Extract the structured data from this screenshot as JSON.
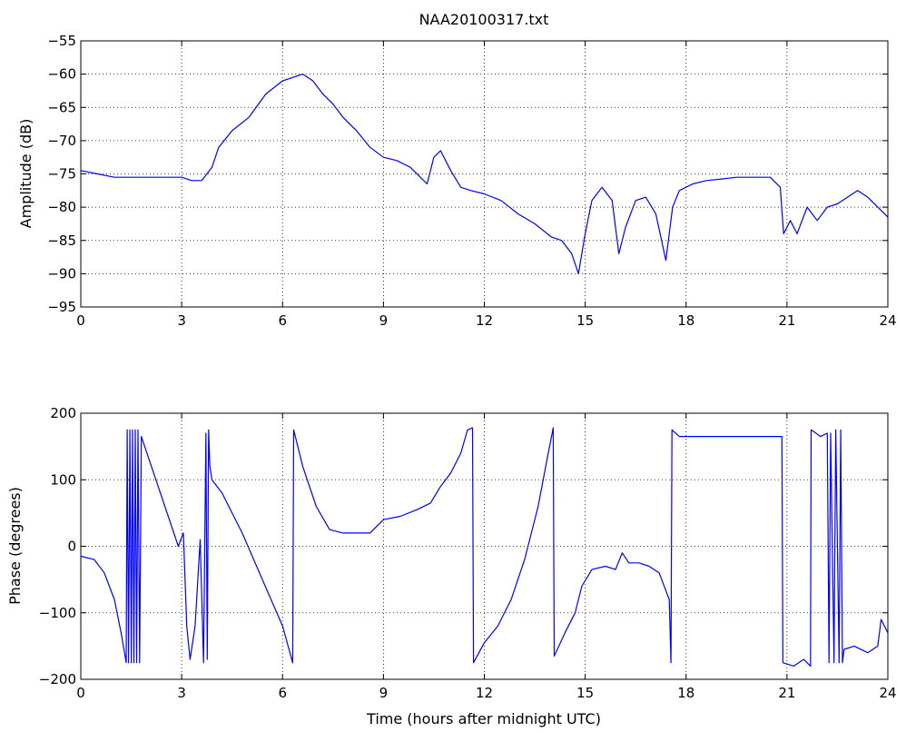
{
  "chart_data": [
    {
      "type": "line",
      "title": "NAA20100317.txt",
      "xlabel": "",
      "ylabel": "Amplitude (dB)",
      "xlim": [
        0,
        24
      ],
      "ylim": [
        -95,
        -55
      ],
      "xticks": [
        0,
        3,
        6,
        9,
        12,
        15,
        18,
        21,
        24
      ],
      "yticks": [
        -95,
        -90,
        -85,
        -80,
        -75,
        -70,
        -65,
        -60,
        -55
      ],
      "grid": true,
      "line_color": "#0000ff",
      "series": [
        {
          "x": [
            0,
            0.5,
            1,
            1.5,
            2,
            2.5,
            3,
            3.3,
            3.6,
            3.9,
            4.1,
            4.5,
            5,
            5.5,
            6,
            6.3,
            6.6,
            6.9,
            7.2,
            7.5,
            7.8,
            8.2,
            8.6,
            9,
            9.4,
            9.8,
            10.1,
            10.3,
            10.5,
            10.7,
            11,
            11.3,
            11.6,
            12,
            12.5,
            13,
            13.5,
            14,
            14.3,
            14.6,
            14.8,
            15,
            15.2,
            15.5,
            15.8,
            16,
            16.2,
            16.5,
            16.8,
            17.1,
            17.4,
            17.6,
            17.8,
            18.2,
            18.6,
            19,
            19.5,
            20,
            20.5,
            20.8,
            20.9,
            21.1,
            21.3,
            21.6,
            21.9,
            22.2,
            22.5,
            22.8,
            23.1,
            23.4,
            23.7,
            24
          ],
          "y": [
            -74.5,
            -75,
            -75.5,
            -75.5,
            -75.5,
            -75.5,
            -75.5,
            -76,
            -76,
            -74,
            -71,
            -68.5,
            -66.5,
            -63,
            -61,
            -60.5,
            -60,
            -61,
            -63,
            -64.5,
            -66.5,
            -68.5,
            -71,
            -72.5,
            -73,
            -74,
            -75.5,
            -76.5,
            -72.5,
            -71.5,
            -74.5,
            -77,
            -77.5,
            -78,
            -79,
            -81,
            -82.5,
            -84.5,
            -85,
            -87,
            -90,
            -84,
            -79,
            -77,
            -79,
            -87,
            -83,
            -79,
            -78.5,
            -81,
            -88,
            -80,
            -77.5,
            -76.5,
            -76,
            -75.8,
            -75.5,
            -75.5,
            -75.5,
            -77,
            -84,
            -82,
            -84,
            -80,
            -82,
            -80,
            -79.5,
            -78.5,
            -77.5,
            -78.5,
            -80,
            -81.5
          ]
        }
      ]
    },
    {
      "type": "line",
      "title": "",
      "xlabel": "Time (hours after midnight UTC)",
      "ylabel": "Phase (degrees)",
      "xlim": [
        0,
        24
      ],
      "ylim": [
        -200,
        200
      ],
      "xticks": [
        0,
        3,
        6,
        9,
        12,
        15,
        18,
        21,
        24
      ],
      "yticks": [
        -200,
        -100,
        0,
        100,
        200
      ],
      "grid": true,
      "line_color": "#0000ff",
      "series": [
        {
          "x": [
            0,
            0.4,
            0.7,
            1,
            1.2,
            1.35,
            1.38,
            1.42,
            1.46,
            1.5,
            1.54,
            1.58,
            1.62,
            1.66,
            1.7,
            1.75,
            1.8,
            2.1,
            2.5,
            2.9,
            3.05,
            3.15,
            3.25,
            3.4,
            3.55,
            3.65,
            3.72,
            3.76,
            3.8,
            3.84,
            3.9,
            4.2,
            4.8,
            5.4,
            6.0,
            6.3,
            6.33,
            6.6,
            7,
            7.4,
            7.8,
            8.2,
            8.6,
            9,
            9.5,
            10,
            10.4,
            10.7,
            11,
            11.3,
            11.5,
            11.65,
            11.68,
            12,
            12.4,
            12.8,
            13.2,
            13.6,
            13.9,
            14.05,
            14.08,
            14.4,
            14.7,
            14.9,
            15.2,
            15.6,
            15.9,
            16.1,
            16.3,
            16.6,
            16.9,
            17.2,
            17.5,
            17.55,
            17.58,
            17.8,
            18.2,
            18.6,
            19,
            19.5,
            20,
            20.5,
            20.85,
            20.88,
            21.2,
            21.5,
            21.7,
            21.72,
            22.0,
            22.2,
            22.25,
            22.3,
            22.4,
            22.45,
            22.55,
            22.6,
            22.65,
            22.7,
            23,
            23.4,
            23.7,
            23.8,
            24
          ],
          "y": [
            -15,
            -20,
            -40,
            -80,
            -130,
            -175,
            175,
            -175,
            175,
            -175,
            175,
            -175,
            175,
            -175,
            175,
            -175,
            165,
            120,
            60,
            0,
            20,
            -120,
            -170,
            -120,
            10,
            -175,
            170,
            -170,
            175,
            120,
            100,
            80,
            20,
            -50,
            -120,
            -175,
            175,
            120,
            60,
            25,
            20,
            20,
            20,
            40,
            45,
            55,
            65,
            90,
            110,
            140,
            175,
            178,
            -175,
            -145,
            -120,
            -80,
            -20,
            60,
            140,
            178,
            -165,
            -130,
            -100,
            -60,
            -35,
            -30,
            -35,
            -10,
            -25,
            -25,
            -30,
            -40,
            -80,
            -175,
            175,
            165,
            165,
            165,
            165,
            165,
            165,
            165,
            165,
            -175,
            -180,
            -170,
            -180,
            175,
            165,
            170,
            -175,
            170,
            -175,
            175,
            -175,
            175,
            -175,
            -155,
            -150,
            -160,
            -150,
            -110,
            -130
          ]
        }
      ]
    }
  ]
}
